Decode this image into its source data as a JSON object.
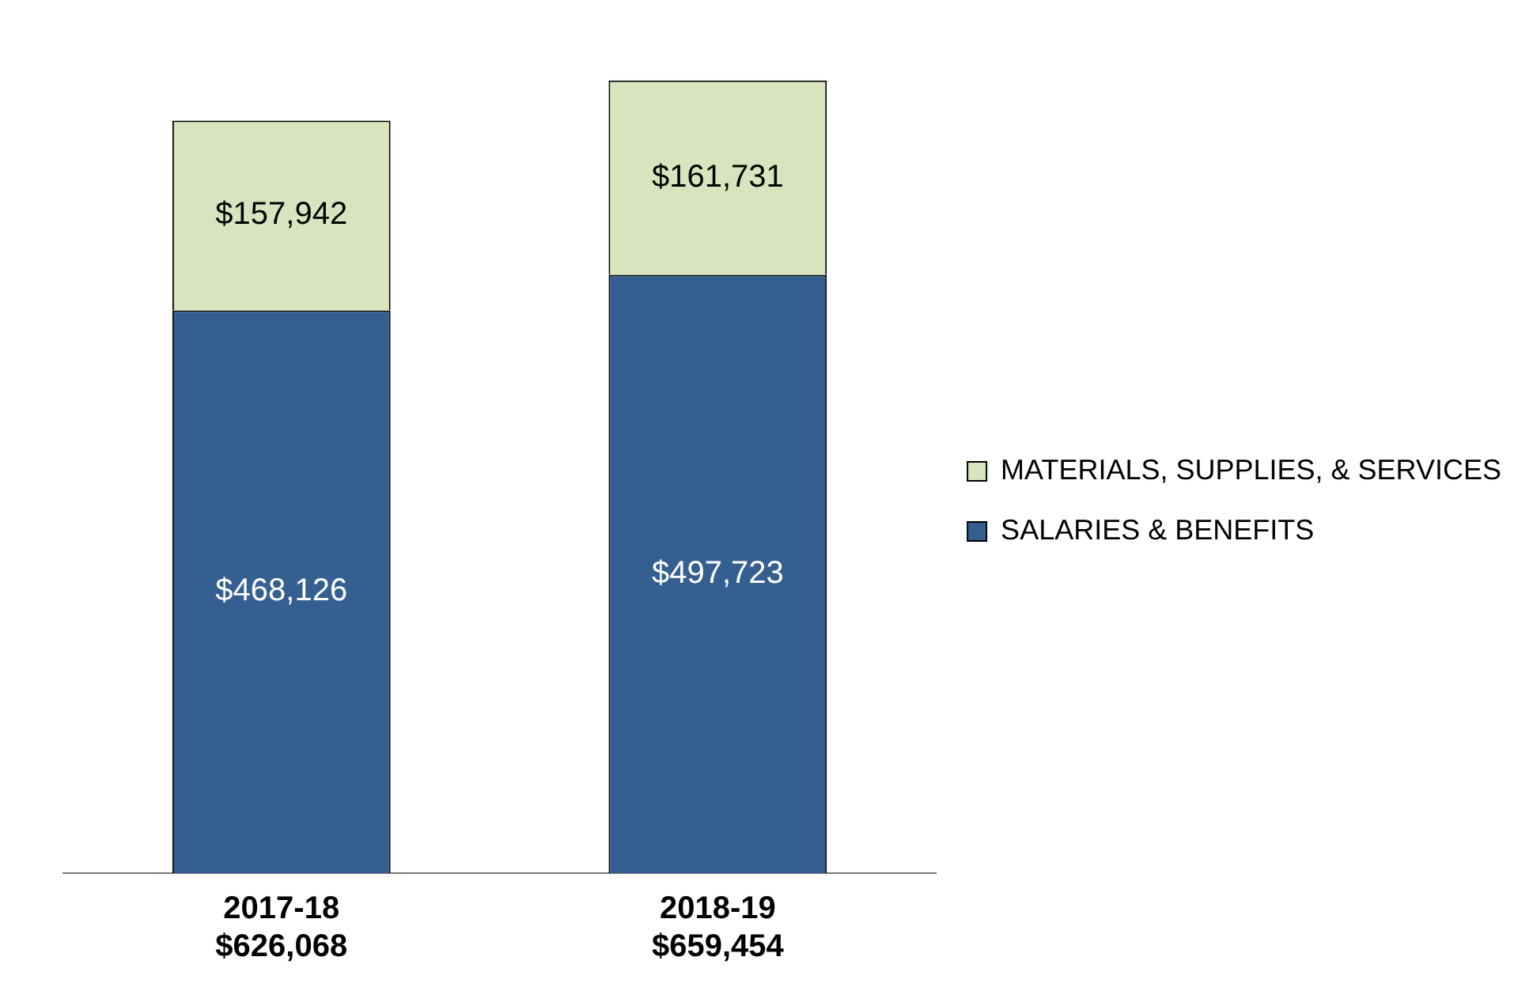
{
  "chart_data": {
    "type": "bar",
    "stacked": true,
    "categories": [
      "2017-18",
      "2018-19"
    ],
    "series": [
      {
        "name": "SALARIES & BENEFITS",
        "color": "#365f91",
        "values": [
          468126,
          497723
        ],
        "value_labels": [
          "$468,126",
          "$497,723"
        ]
      },
      {
        "name": "MATERIALS, SUPPLIES, & SERVICES",
        "color": "#d7e4bd",
        "values": [
          157942,
          161731
        ],
        "value_labels": [
          "$157,942",
          "$161,731"
        ]
      }
    ],
    "totals": [
      "$626,068",
      "$659,454"
    ],
    "legend": "right",
    "grid": false
  }
}
